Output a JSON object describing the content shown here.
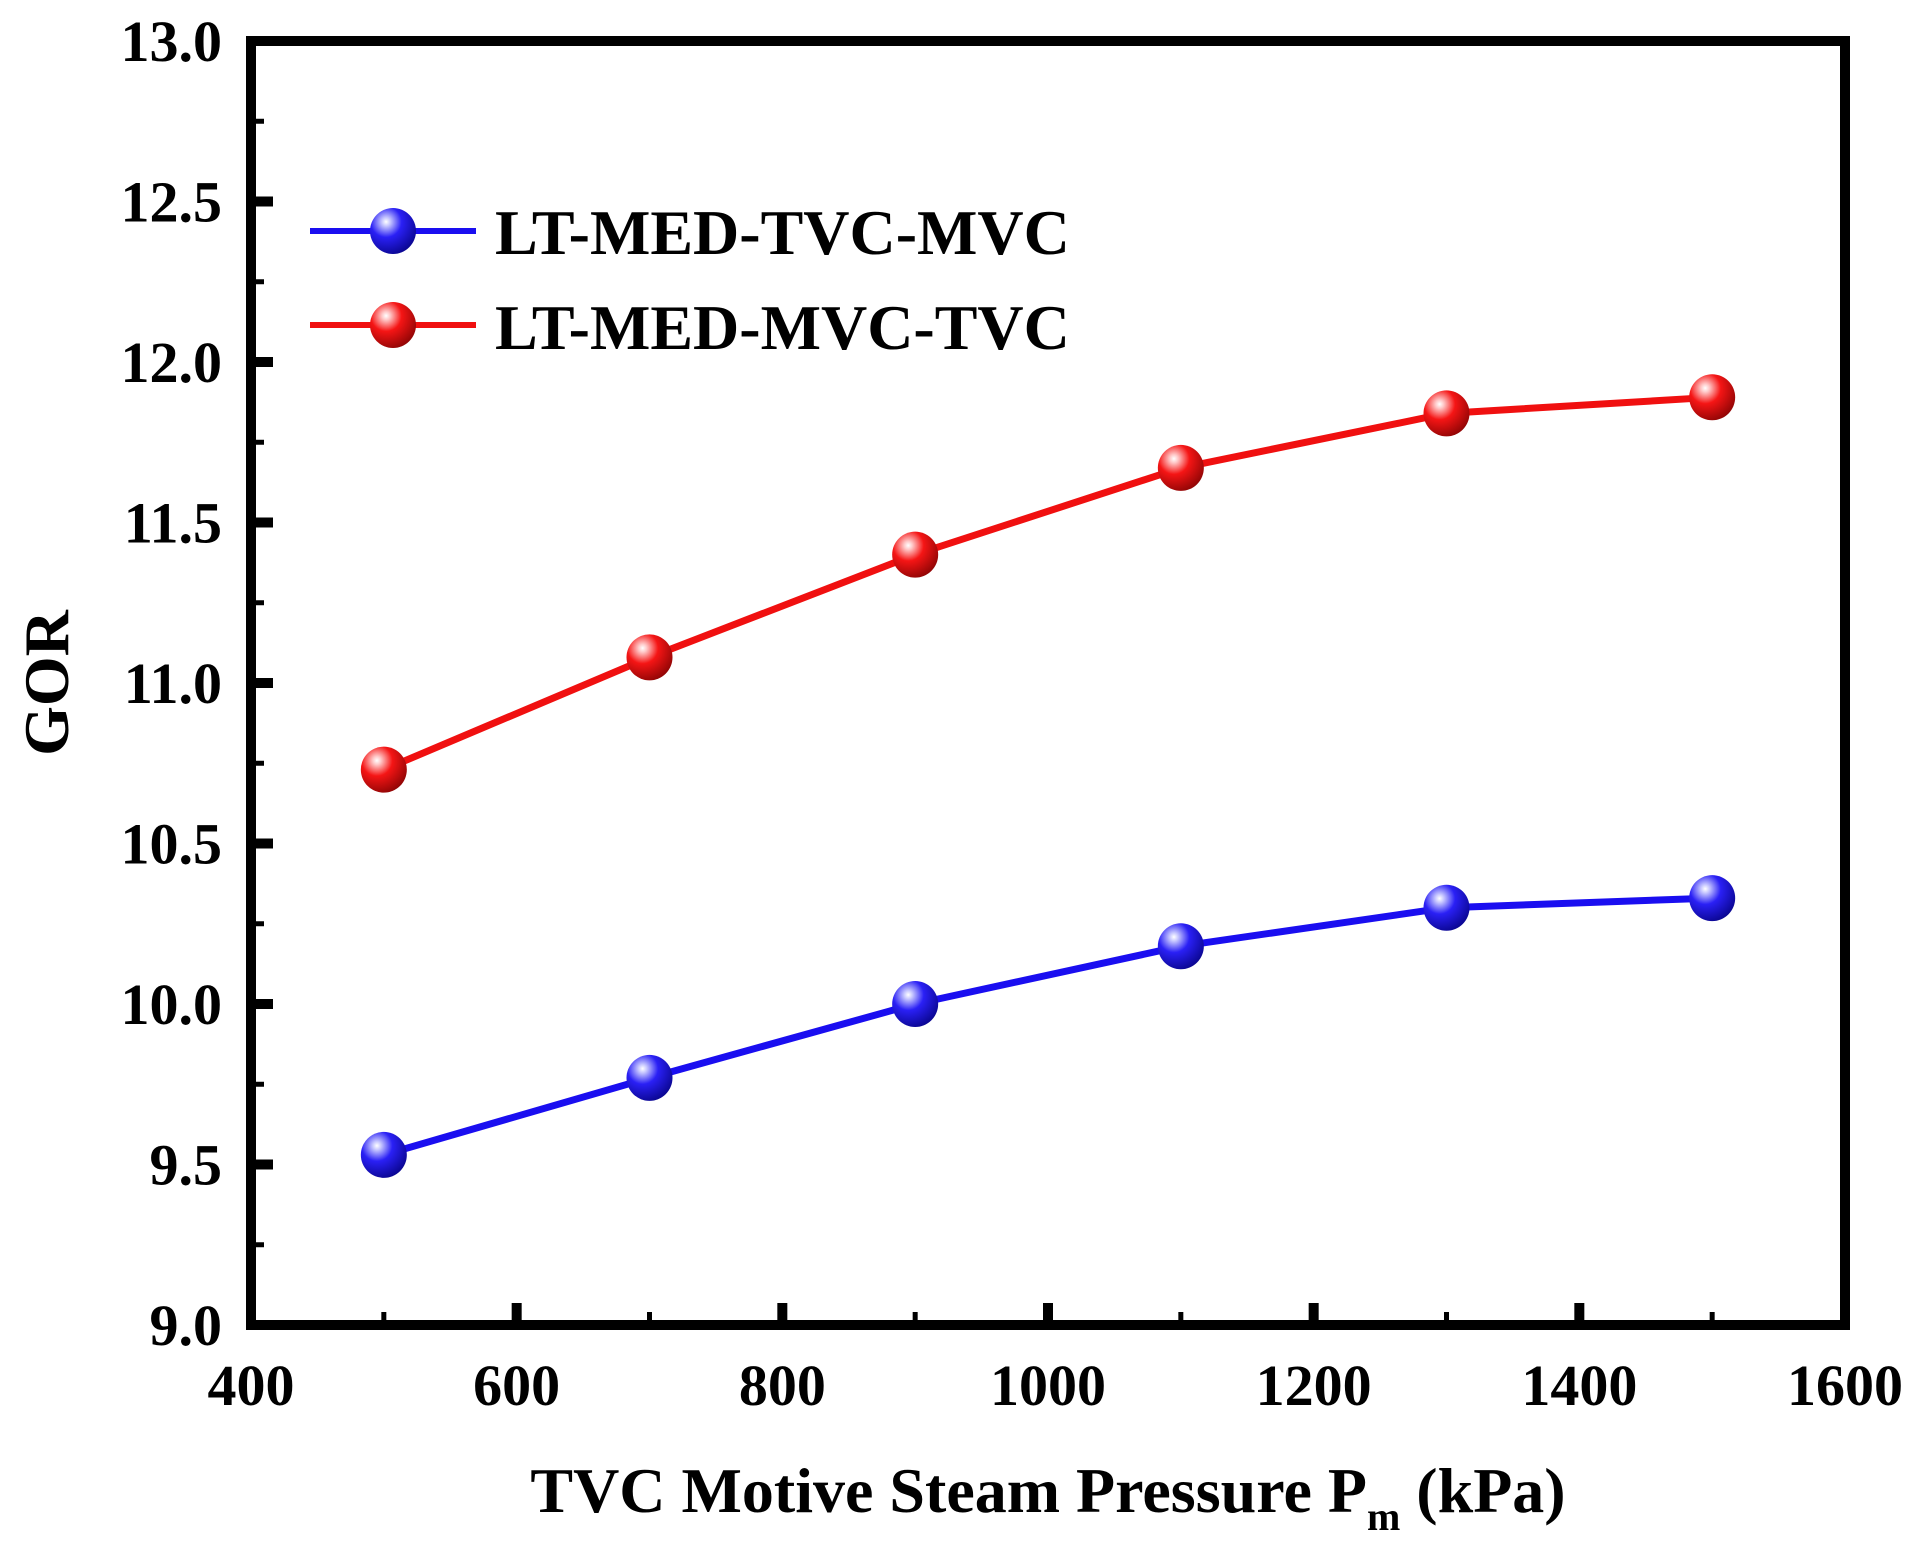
{
  "chart_data": {
    "type": "line",
    "title": "",
    "xlabel": "TVC Motive Steam Pressure P",
    "xlabel_subscript": "m",
    "xlabel_unit": "(kPa)",
    "ylabel": "GOR",
    "xlim": [
      400,
      1600
    ],
    "ylim": [
      9.0,
      13.0
    ],
    "xticks": [
      "400",
      "600",
      "800",
      "1000",
      "1200",
      "1400",
      "1600"
    ],
    "yticks": [
      "9.0",
      "9.5",
      "10.0",
      "10.5",
      "11.0",
      "11.5",
      "12.0",
      "12.5",
      "13.0"
    ],
    "x": [
      500,
      700,
      900,
      1100,
      1300,
      1500
    ],
    "series": [
      {
        "name": "LT-MED-TVC-MVC",
        "color": "#1a0ef0",
        "values": [
          9.53,
          9.77,
          10.0,
          10.18,
          10.3,
          10.33
        ]
      },
      {
        "name": "LT-MED-MVC-TVC",
        "color": "#f01010",
        "values": [
          10.73,
          11.08,
          11.4,
          11.67,
          11.84,
          11.89
        ]
      }
    ],
    "legend_position": "top-left",
    "grid": false
  }
}
